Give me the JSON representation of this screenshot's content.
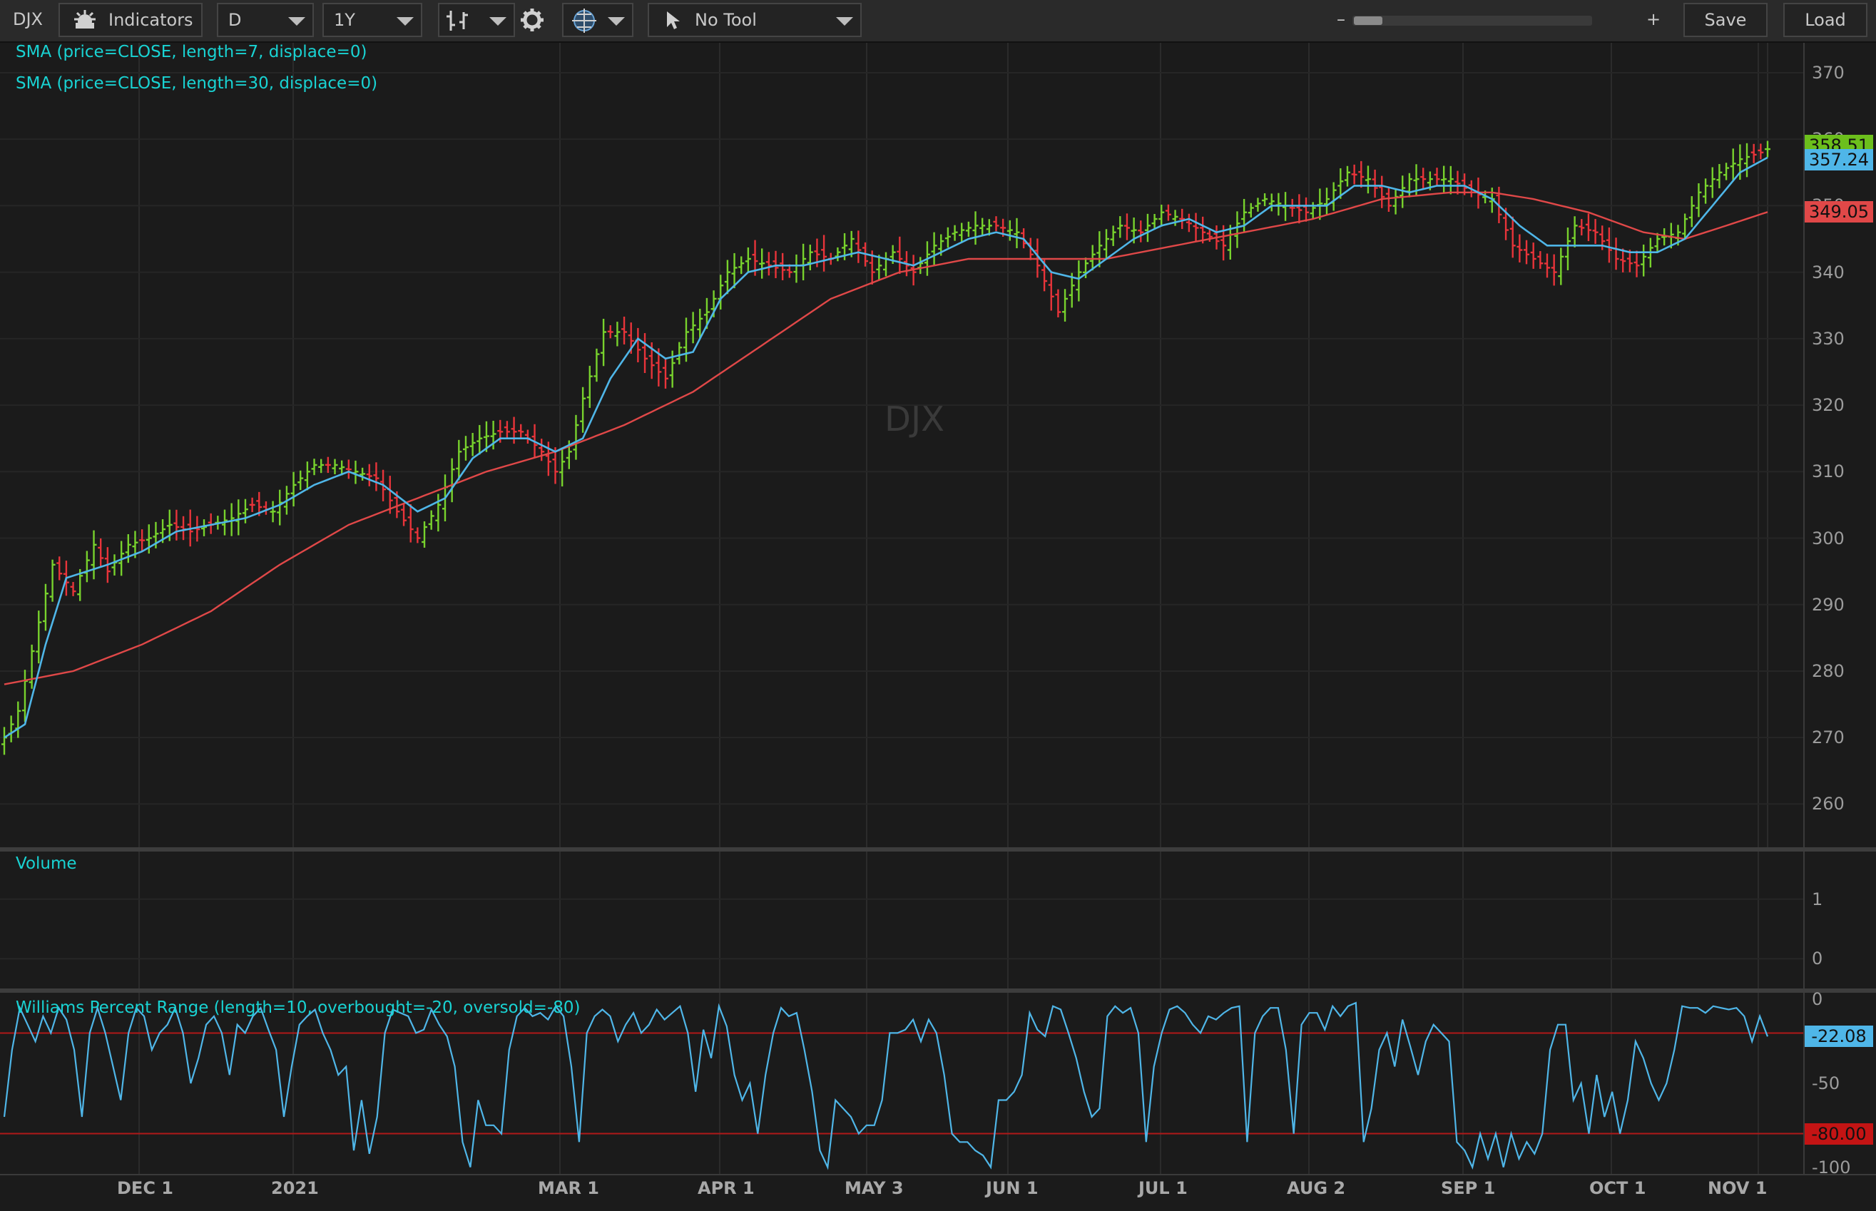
{
  "toolbar": {
    "symbol": "DJX",
    "indicators_label": "Indicators",
    "aggregation": "D",
    "time_frame": "1Y",
    "drawing_tool": "No Tool",
    "zoom_minus": "–",
    "zoom_plus": "+",
    "save_label": "Save",
    "load_label": "Load",
    "icons": [
      "studies-gear-icon",
      "chart-style-icon",
      "settings-gear-icon",
      "crosshair-grid-icon",
      "cursor-arrow-icon"
    ]
  },
  "watermark": "DJX",
  "studies": {
    "sma_fast": "SMA (price=CLOSE, length=7, displace=0)",
    "sma_slow": "SMA (price=CLOSE, length=30, displace=0)",
    "volume": "Volume",
    "williams": "Williams Percent Range (length=10, overbought=-20, oversold=-80)"
  },
  "colors": {
    "background": "#1b1b1b",
    "up_bar": "#78d22d",
    "down_bar": "#e8343a",
    "sma_fast": "#4fb6e8",
    "sma_slow": "#e04848",
    "study_label": "#19d3d3",
    "wpr_line": "#4fb6e8",
    "wpr_levels": "#b01818"
  },
  "price_labels": {
    "last": "358.51",
    "sma_fast": "357.24",
    "sma_slow": "349.05"
  },
  "wpr_labels": {
    "last": "-22.08",
    "oversold": "-80.00"
  },
  "chart_data": [
    {
      "type": "ohlc",
      "symbol": "DJX",
      "x_labels": [
        "DEC 1",
        "2021",
        "MAR 1",
        "APR 1",
        "MAY 3",
        "JUN 1",
        "JUL 1",
        "AUG 2",
        "SEP 1",
        "OCT 1",
        "NOV 1"
      ],
      "y_ticks": [
        260,
        270,
        280,
        290,
        300,
        310,
        320,
        330,
        340,
        350,
        360,
        370
      ],
      "ylim": [
        253.5,
        374.5
      ],
      "last_price": 358.51,
      "close_anchors": [
        [
          0,
          270
        ],
        [
          2,
          274
        ],
        [
          4,
          283
        ],
        [
          7,
          296
        ],
        [
          10,
          292
        ],
        [
          13,
          299
        ],
        [
          15,
          295
        ],
        [
          18,
          299
        ],
        [
          21,
          300
        ],
        [
          24,
          302
        ],
        [
          27,
          301
        ],
        [
          30,
          302
        ],
        [
          33,
          303
        ],
        [
          36,
          305
        ],
        [
          39,
          304
        ],
        [
          42,
          308
        ],
        [
          45,
          311
        ],
        [
          48,
          311
        ],
        [
          51,
          310
        ],
        [
          54,
          309
        ],
        [
          57,
          304
        ],
        [
          60,
          300
        ],
        [
          63,
          305
        ],
        [
          66,
          313
        ],
        [
          69,
          315
        ],
        [
          72,
          316
        ],
        [
          75,
          316
        ],
        [
          78,
          313
        ],
        [
          80,
          310
        ],
        [
          82,
          313
        ],
        [
          84,
          321
        ],
        [
          87,
          331
        ],
        [
          90,
          331
        ],
        [
          93,
          327
        ],
        [
          96,
          324
        ],
        [
          99,
          331
        ],
        [
          102,
          334
        ],
        [
          105,
          340
        ],
        [
          108,
          342
        ],
        [
          111,
          341
        ],
        [
          114,
          340
        ],
        [
          117,
          343
        ],
        [
          120,
          342
        ],
        [
          123,
          345
        ],
        [
          126,
          340
        ],
        [
          129,
          343
        ],
        [
          132,
          340
        ],
        [
          135,
          344
        ],
        [
          138,
          346
        ],
        [
          141,
          347
        ],
        [
          144,
          347
        ],
        [
          147,
          346
        ],
        [
          150,
          341
        ],
        [
          153,
          334
        ],
        [
          156,
          340
        ],
        [
          159,
          344
        ],
        [
          162,
          347
        ],
        [
          165,
          346
        ],
        [
          168,
          349
        ],
        [
          171,
          348
        ],
        [
          174,
          346
        ],
        [
          177,
          344
        ],
        [
          180,
          349
        ],
        [
          183,
          351
        ],
        [
          186,
          350
        ],
        [
          189,
          349
        ],
        [
          192,
          351
        ],
        [
          195,
          355
        ],
        [
          198,
          354
        ],
        [
          201,
          350
        ],
        [
          204,
          354
        ],
        [
          207,
          354
        ],
        [
          210,
          354
        ],
        [
          213,
          352
        ],
        [
          216,
          351
        ],
        [
          219,
          344
        ],
        [
          222,
          342
        ],
        [
          225,
          340
        ],
        [
          228,
          347
        ],
        [
          231,
          346
        ],
        [
          234,
          342
        ],
        [
          237,
          341
        ],
        [
          240,
          345
        ],
        [
          243,
          346
        ],
        [
          246,
          352
        ],
        [
          249,
          355
        ],
        [
          252,
          357
        ],
        [
          255,
          358
        ],
        [
          256,
          358.51
        ]
      ],
      "sma_fast_anchors": [
        [
          0,
          270
        ],
        [
          3,
          272
        ],
        [
          6,
          284
        ],
        [
          9,
          294
        ],
        [
          12,
          295
        ],
        [
          15,
          296
        ],
        [
          20,
          298
        ],
        [
          25,
          301
        ],
        [
          30,
          302
        ],
        [
          35,
          303
        ],
        [
          40,
          305
        ],
        [
          45,
          308
        ],
        [
          50,
          310
        ],
        [
          55,
          308
        ],
        [
          60,
          304
        ],
        [
          64,
          306
        ],
        [
          68,
          312
        ],
        [
          72,
          315
        ],
        [
          76,
          315
        ],
        [
          80,
          313
        ],
        [
          84,
          315
        ],
        [
          88,
          324
        ],
        [
          92,
          330
        ],
        [
          96,
          327
        ],
        [
          100,
          328
        ],
        [
          104,
          336
        ],
        [
          108,
          340
        ],
        [
          112,
          341
        ],
        [
          116,
          341
        ],
        [
          120,
          342
        ],
        [
          124,
          343
        ],
        [
          128,
          342
        ],
        [
          132,
          341
        ],
        [
          136,
          343
        ],
        [
          140,
          345
        ],
        [
          144,
          346
        ],
        [
          148,
          345
        ],
        [
          152,
          340
        ],
        [
          156,
          339
        ],
        [
          160,
          342
        ],
        [
          164,
          345
        ],
        [
          168,
          347
        ],
        [
          172,
          348
        ],
        [
          176,
          346
        ],
        [
          180,
          347
        ],
        [
          184,
          350
        ],
        [
          188,
          350
        ],
        [
          192,
          350
        ],
        [
          196,
          353
        ],
        [
          200,
          353
        ],
        [
          204,
          352
        ],
        [
          208,
          353
        ],
        [
          212,
          353
        ],
        [
          216,
          351
        ],
        [
          220,
          347
        ],
        [
          224,
          344
        ],
        [
          228,
          344
        ],
        [
          232,
          344
        ],
        [
          236,
          343
        ],
        [
          240,
          343
        ],
        [
          244,
          345
        ],
        [
          248,
          350
        ],
        [
          252,
          355
        ],
        [
          256,
          357.24
        ]
      ],
      "sma_slow_anchors": [
        [
          0,
          278
        ],
        [
          10,
          280
        ],
        [
          20,
          284
        ],
        [
          30,
          289
        ],
        [
          40,
          296
        ],
        [
          50,
          302
        ],
        [
          60,
          306
        ],
        [
          70,
          310
        ],
        [
          80,
          313
        ],
        [
          90,
          317
        ],
        [
          100,
          322
        ],
        [
          110,
          329
        ],
        [
          120,
          336
        ],
        [
          130,
          340
        ],
        [
          140,
          342
        ],
        [
          150,
          342
        ],
        [
          160,
          342
        ],
        [
          170,
          344
        ],
        [
          180,
          346
        ],
        [
          190,
          348
        ],
        [
          200,
          351
        ],
        [
          210,
          352
        ],
        [
          216,
          352
        ],
        [
          222,
          351
        ],
        [
          230,
          349
        ],
        [
          238,
          346
        ],
        [
          244,
          345
        ],
        [
          250,
          347
        ],
        [
          256,
          349.05
        ]
      ]
    },
    {
      "type": "line",
      "name": "Volume",
      "y_ticks": [
        0,
        1
      ],
      "ylim": [
        -0.5,
        1.8
      ],
      "values": []
    },
    {
      "type": "line",
      "name": "Williams Percent Range",
      "y_ticks": [
        0,
        -50,
        -100
      ],
      "ylim": [
        -104,
        4
      ],
      "overbought": -20,
      "oversold": -80,
      "last_value": -22.08,
      "values": [
        -70,
        -30,
        -5,
        -15,
        -25,
        -10,
        -20,
        -5,
        -12,
        -30,
        -70,
        -20,
        -5,
        -20,
        -40,
        -60,
        -20,
        -5,
        -10,
        -30,
        -20,
        -15,
        -5,
        -20,
        -50,
        -35,
        -15,
        -10,
        -20,
        -45,
        -15,
        -20,
        -10,
        -5,
        -18,
        -30,
        -70,
        -40,
        -15,
        -10,
        -6,
        -20,
        -30,
        -45,
        -40,
        -90,
        -60,
        -92,
        -70,
        -20,
        -6,
        -8,
        -10,
        -20,
        -18,
        -6,
        -15,
        -22,
        -40,
        -85,
        -100,
        -60,
        -75,
        -75,
        -80,
        -30,
        -10,
        -5,
        -10,
        -8,
        -12,
        -4,
        -10,
        -40,
        -85,
        -20,
        -10,
        -6,
        -10,
        -25,
        -15,
        -8,
        -20,
        -15,
        -6,
        -12,
        -8,
        -4,
        -20,
        -55,
        -18,
        -35,
        -4,
        -16,
        -45,
        -60,
        -50,
        -80,
        -45,
        -20,
        -5,
        -10,
        -8,
        -30,
        -55,
        -90,
        -100,
        -60,
        -65,
        -70,
        -80,
        -75,
        -75,
        -60,
        -20,
        -20,
        -18,
        -12,
        -25,
        -12,
        -20,
        -45,
        -80,
        -85,
        -85,
        -90,
        -93,
        -100,
        -60,
        -60,
        -55,
        -45,
        -8,
        -18,
        -22,
        -4,
        -6,
        -20,
        -35,
        -55,
        -70,
        -65,
        -10,
        -4,
        -8,
        -5,
        -20,
        -85,
        -40,
        -20,
        -6,
        -4,
        -8,
        -15,
        -20,
        -10,
        -12,
        -8,
        -5,
        -4,
        -85,
        -20,
        -10,
        -5,
        -5,
        -30,
        -80,
        -15,
        -8,
        -8,
        -18,
        -4,
        -10,
        -4,
        -2,
        -85,
        -65,
        -30,
        -20,
        -40,
        -12,
        -28,
        -45,
        -25,
        -15,
        -20,
        -25,
        -85,
        -90,
        -100,
        -80,
        -95,
        -80,
        -100,
        -80,
        -95,
        -85,
        -92,
        -80,
        -30,
        -15,
        -15,
        -60,
        -50,
        -80,
        -45,
        -70,
        -55,
        -80,
        -60,
        -25,
        -35,
        -50,
        -60,
        -50,
        -30,
        -4,
        -5,
        -5,
        -8,
        -4,
        -5,
        -6,
        -5,
        -10,
        -25,
        -10,
        -22.08
      ]
    }
  ]
}
